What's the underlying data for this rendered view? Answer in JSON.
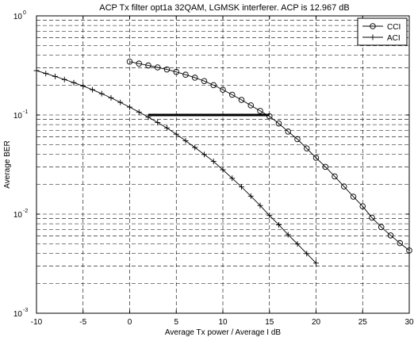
{
  "chart_data": {
    "type": "line",
    "title": "ACP Tx filter opt1a 32QAM, LGMSK interferer. ACP is 12.967 dB",
    "xlabel": "Average Tx power / Average I  dB",
    "ylabel": "Average BER",
    "xlim": [
      -10,
      30
    ],
    "ylim": [
      0.001,
      1
    ],
    "yscale": "log",
    "grid": "dashed",
    "legend_position": "top-right",
    "x_ticks": [
      -10,
      -5,
      0,
      5,
      10,
      15,
      20,
      25,
      30
    ],
    "y_ticks": [
      {
        "base": "10",
        "exp": "-3"
      },
      {
        "base": "10",
        "exp": "-2"
      },
      {
        "base": "10",
        "exp": "-1"
      },
      {
        "base": "10",
        "exp": "0"
      }
    ],
    "series": [
      {
        "name": "CCI",
        "marker": "circle",
        "x": [
          0,
          1,
          2,
          3,
          4,
          5,
          6,
          7,
          8,
          9,
          10,
          11,
          12,
          13,
          14,
          15,
          16,
          17,
          18,
          19,
          20,
          21,
          22,
          23,
          24,
          25,
          26,
          27,
          28,
          29,
          30
        ],
        "y": [
          0.345,
          0.33,
          0.316,
          0.302,
          0.288,
          0.272,
          0.255,
          0.238,
          0.22,
          0.2,
          0.18,
          0.16,
          0.142,
          0.125,
          0.11,
          0.097,
          0.082,
          0.068,
          0.057,
          0.046,
          0.037,
          0.03,
          0.024,
          0.019,
          0.015,
          0.012,
          0.0092,
          0.0074,
          0.0061,
          0.0051,
          0.0043
        ]
      },
      {
        "name": "ACI",
        "marker": "plus",
        "x": [
          -10,
          -9,
          -8,
          -7,
          -6,
          -5,
          -4,
          -3,
          -2,
          -1,
          0,
          1,
          2,
          3,
          4,
          5,
          6,
          7,
          8,
          9,
          10,
          11,
          12,
          13,
          14,
          15,
          16,
          17,
          18,
          19,
          20
        ],
        "y": [
          0.28,
          0.262,
          0.245,
          0.228,
          0.212,
          0.196,
          0.18,
          0.164,
          0.149,
          0.134,
          0.12,
          0.107,
          0.095,
          0.084,
          0.074,
          0.064,
          0.055,
          0.047,
          0.04,
          0.034,
          0.028,
          0.023,
          0.0188,
          0.0152,
          0.0122,
          0.0097,
          0.0078,
          0.0062,
          0.005,
          0.004,
          0.0032
        ]
      }
    ],
    "annotation": {
      "type": "horizontal-segment",
      "x": [
        2,
        15
      ],
      "y": 0.1
    }
  }
}
